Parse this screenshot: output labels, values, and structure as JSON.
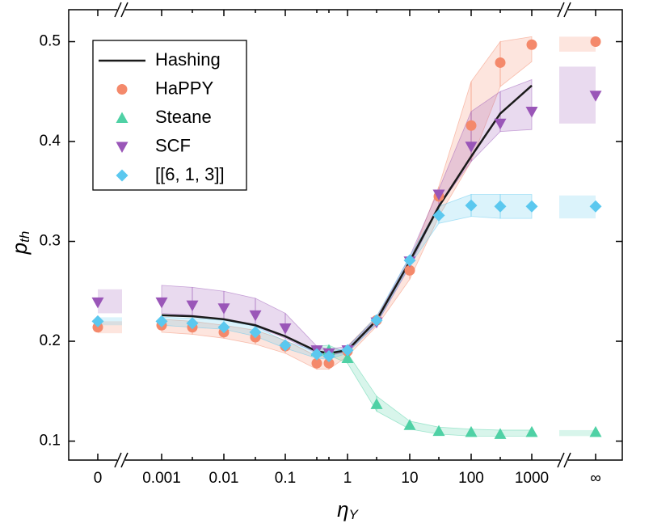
{
  "chart_data": {
    "type": "scatter",
    "categories": [
      "0",
      "0.001",
      null,
      "0.01",
      null,
      "0.1",
      null,
      null,
      "1",
      null,
      "10",
      null,
      "100",
      null,
      "1000",
      "∞"
    ],
    "xlabel": "η",
    "xlabel_sub": "Y",
    "ylabel": "p",
    "ylabel_sub": "th",
    "ylim": [
      0.081,
      0.532
    ],
    "yticks": [
      0.1,
      0.2,
      0.3,
      0.4,
      0.5
    ],
    "legend": "upper left",
    "series": [
      {
        "name": "Hashing",
        "color": "#1a1a1a",
        "marker": "line",
        "values": [
          null,
          0.226,
          0.225,
          0.222,
          0.216,
          0.205,
          0.19,
          0.188,
          0.191,
          0.221,
          0.28,
          0.335,
          0.385,
          0.428,
          0.456,
          null
        ]
      },
      {
        "name": "HaPPY",
        "color": "#f4896b",
        "marker": "circle",
        "values": [
          0.214,
          0.216,
          0.214,
          0.209,
          0.204,
          0.195,
          0.178,
          0.178,
          0.19,
          0.221,
          0.271,
          0.345,
          0.416,
          0.479,
          0.497,
          0.5
        ],
        "band_upper": [
          0.22,
          0.222,
          0.22,
          0.216,
          0.211,
          0.201,
          0.185,
          0.183,
          0.195,
          0.225,
          0.28,
          0.355,
          0.46,
          0.5,
          0.505,
          0.505
        ],
        "band_lower": [
          0.208,
          0.209,
          0.207,
          0.203,
          0.197,
          0.188,
          0.172,
          0.172,
          0.185,
          0.215,
          0.262,
          0.325,
          0.38,
          0.455,
          0.48,
          0.49
        ]
      },
      {
        "name": "Steane",
        "color": "#4fd1a5",
        "marker": "triangle",
        "values": [
          null,
          null,
          null,
          null,
          null,
          null,
          0.19,
          0.191,
          0.183,
          0.137,
          0.116,
          0.11,
          0.109,
          0.107,
          0.109,
          0.109
        ],
        "band_upper": [
          null,
          null,
          null,
          null,
          null,
          null,
          0.195,
          0.196,
          0.188,
          0.145,
          0.12,
          0.114,
          0.112,
          0.111,
          0.111,
          0.111
        ],
        "band_lower": [
          null,
          null,
          null,
          null,
          null,
          null,
          0.186,
          0.186,
          0.178,
          0.13,
          0.112,
          0.107,
          0.105,
          0.105,
          0.105,
          0.105
        ]
      },
      {
        "name": "SCF",
        "color": "#9a56b8",
        "marker": "triangle-down",
        "values": [
          0.239,
          0.239,
          0.236,
          0.233,
          0.226,
          0.213,
          0.191,
          0.188,
          0.191,
          0.219,
          0.28,
          0.347,
          0.395,
          0.418,
          0.43,
          0.446
        ],
        "band_upper": [
          0.252,
          0.256,
          0.254,
          0.25,
          0.243,
          0.228,
          0.195,
          0.192,
          0.195,
          0.223,
          0.285,
          0.352,
          0.43,
          0.45,
          0.462,
          0.475
        ],
        "band_lower": [
          0.228,
          0.228,
          0.226,
          0.222,
          0.215,
          0.203,
          0.188,
          0.186,
          0.189,
          0.217,
          0.275,
          0.335,
          0.38,
          0.41,
          0.412,
          0.418
        ]
      },
      {
        "name": "[[6, 1, 3]]",
        "color": "#5bc8ef",
        "marker": "diamond",
        "values": [
          0.22,
          0.22,
          0.218,
          0.214,
          0.209,
          0.196,
          0.187,
          0.185,
          0.191,
          0.221,
          0.281,
          0.326,
          0.336,
          0.335,
          0.335,
          0.335
        ],
        "band_upper": [
          0.224,
          0.224,
          0.223,
          0.221,
          0.215,
          0.2,
          0.19,
          0.188,
          0.194,
          0.225,
          0.285,
          0.335,
          0.347,
          0.347,
          0.347,
          0.346
        ],
        "band_lower": [
          0.216,
          0.216,
          0.214,
          0.212,
          0.205,
          0.193,
          0.183,
          0.182,
          0.188,
          0.218,
          0.276,
          0.318,
          0.325,
          0.323,
          0.323,
          0.323
        ]
      }
    ]
  }
}
